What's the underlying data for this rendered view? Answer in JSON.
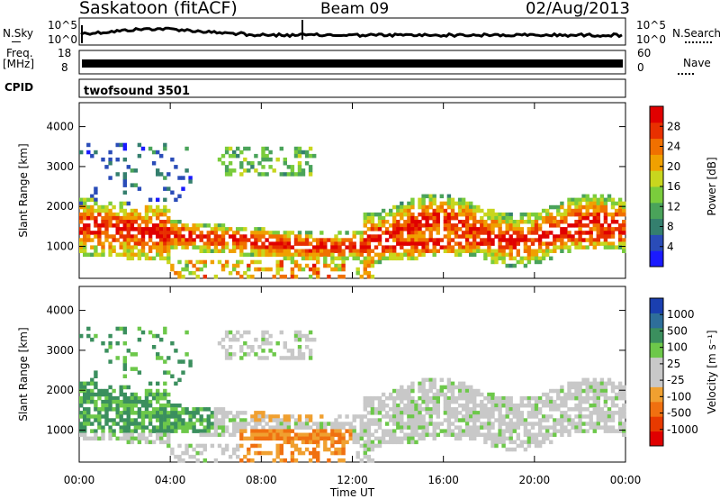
{
  "header": {
    "station": "Saskatoon (fitACF)",
    "beam": "Beam 09",
    "date": "02/Aug/2013"
  },
  "panels": {
    "nsky_label": "N.Sky",
    "nsky_ticks": [
      "10^5",
      "10^0"
    ],
    "nsearch_label": "N.Search",
    "freq_label_1": "Freq.",
    "freq_label_2": "[MHz]",
    "freq_ticks": [
      "18",
      "8"
    ],
    "nave_ticks": [
      "60",
      "0"
    ],
    "nave_label": "Nave",
    "cpid_label": "CPID",
    "cpid_value": "twofsound 3501"
  },
  "colors": {
    "power_scale": [
      "#1a1aff",
      "#2a4cb8",
      "#347f6e",
      "#4aa35a",
      "#7acc3c",
      "#c8d61e",
      "#f0a000",
      "#f07000",
      "#e83000",
      "#e00000"
    ],
    "velocity_scale": [
      "#1a3fb0",
      "#2e6e9a",
      "#3b8f5e",
      "#6dc84a",
      "#c8c8c8",
      "#c8c8c8",
      "#f0a030",
      "#f07010",
      "#e83a00",
      "#e00000"
    ]
  },
  "chart_data": [
    {
      "type": "heatmap",
      "name": "power",
      "xlabel": "",
      "ylabel": "Slant Range [km]",
      "y_ticks": [
        "1000",
        "2000",
        "3000",
        "4000"
      ],
      "ylim": [
        200,
        4600
      ],
      "colorbar_label": "Power [dB]",
      "colorbar_ticks": [
        "4",
        "8",
        "12",
        "16",
        "20",
        "24",
        "28"
      ],
      "colorbar_range": [
        0,
        31
      ]
    },
    {
      "type": "heatmap",
      "name": "velocity",
      "xlabel": "Time UT",
      "ylabel": "Slant Range [km]",
      "x_ticks": [
        "00:00",
        "04:00",
        "08:00",
        "12:00",
        "16:00",
        "20:00",
        "00:00"
      ],
      "xlim_hours": [
        0,
        24
      ],
      "y_ticks": [
        "1000",
        "2000",
        "3000",
        "4000"
      ],
      "ylim": [
        200,
        4600
      ],
      "colorbar_label": "Velocity [m s⁻¹]",
      "colorbar_ticks": [
        "1000",
        "500",
        "100",
        "25",
        "-25",
        "-100",
        "-500",
        "-1000"
      ]
    }
  ]
}
